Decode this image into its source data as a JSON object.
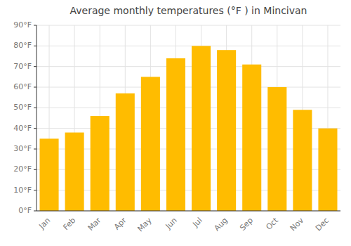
{
  "chart_data": {
    "type": "bar",
    "title": "Average monthly temperatures (°F ) in Mincivan",
    "categories": [
      "Jan",
      "Feb",
      "Mar",
      "Apr",
      "May",
      "Jun",
      "Jul",
      "Aug",
      "Sep",
      "Oct",
      "Nov",
      "Dec"
    ],
    "values": [
      35,
      38,
      46,
      57,
      65,
      74,
      80,
      78,
      71,
      60,
      49,
      40
    ],
    "color": "#FFBC00",
    "ylim": [
      0,
      90
    ],
    "yticks": [
      {
        "value": 0,
        "label": "0°F"
      },
      {
        "value": 10,
        "label": "10°F"
      },
      {
        "value": 20,
        "label": "20°F"
      },
      {
        "value": 30,
        "label": "30°F"
      },
      {
        "value": 40,
        "label": "40°F"
      },
      {
        "value": 50,
        "label": "50°F"
      },
      {
        "value": 60,
        "label": "60°F"
      },
      {
        "value": 70,
        "label": "70°F"
      },
      {
        "value": 80,
        "label": "80°F"
      },
      {
        "value": 90,
        "label": "90°F"
      }
    ],
    "grid": true
  }
}
